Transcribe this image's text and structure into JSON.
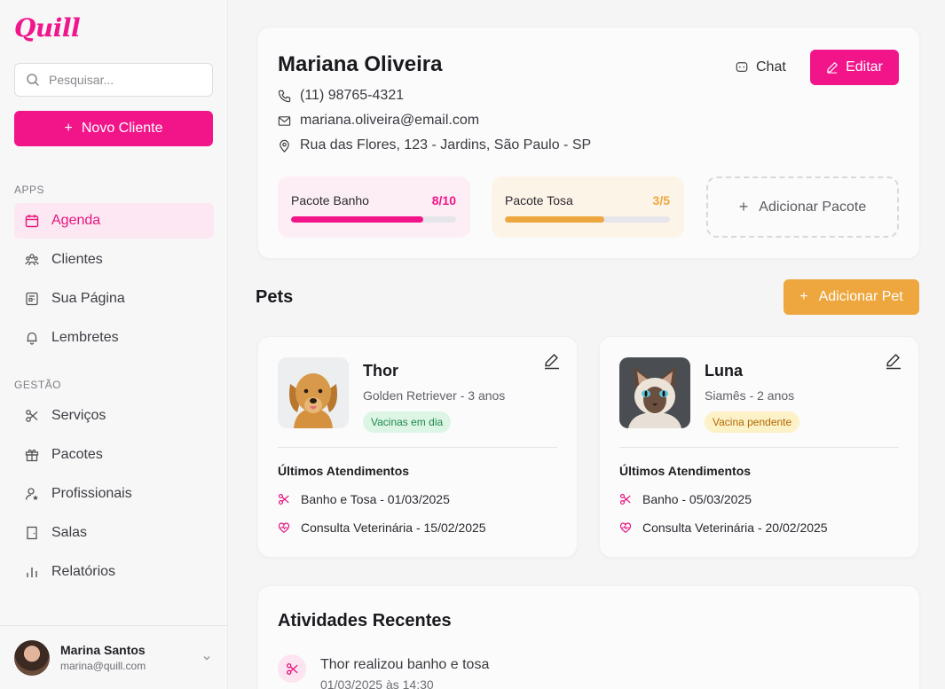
{
  "app": {
    "logo": "Quill"
  },
  "sidebar": {
    "search_placeholder": "Pesquisar...",
    "new_client_label": "Novo Cliente",
    "section_apps": "APPS",
    "section_gestao": "GESTÃO",
    "apps_items": [
      {
        "label": "Agenda",
        "icon": "calendar-icon",
        "active": true
      },
      {
        "label": "Clientes",
        "icon": "users-icon"
      },
      {
        "label": "Sua Página",
        "icon": "page-icon"
      },
      {
        "label": "Lembretes",
        "icon": "bell-icon"
      }
    ],
    "gestao_items": [
      {
        "label": "Serviços",
        "icon": "scissors-icon"
      },
      {
        "label": "Pacotes",
        "icon": "gift-icon"
      },
      {
        "label": "Profissionais",
        "icon": "user-star-icon"
      },
      {
        "label": "Salas",
        "icon": "door-icon"
      },
      {
        "label": "Relatórios",
        "icon": "bar-chart-icon"
      }
    ],
    "user": {
      "name": "Marina Santos",
      "email": "marina@quill.com"
    }
  },
  "client": {
    "name": "Mariana Oliveira",
    "phone": "(11) 98765-4321",
    "email": "mariana.oliveira@email.com",
    "address": "Rua das Flores, 123 - Jardins, São Paulo - SP",
    "chat_label": "Chat",
    "edit_label": "Editar",
    "packages": [
      {
        "title": "Pacote Banho",
        "count": "8/10",
        "progress": 0.8,
        "color": "#f2158a",
        "bg": "#fdeef5"
      },
      {
        "title": "Pacote Tosa",
        "count": "3/5",
        "progress": 0.6,
        "color": "#eea73e",
        "bg": "#fdf4e8"
      }
    ],
    "add_package_label": "Adicionar Pacote"
  },
  "pets_section": {
    "title": "Pets",
    "add_label": "Adicionar Pet",
    "history_title": "Últimos Atendimentos",
    "pets": [
      {
        "name": "Thor",
        "breed": "Golden Retriever - 3 anos",
        "badge": "Vacinas em dia",
        "badge_color": "#1f8a4c",
        "badge_bg": "#ddf5e5",
        "history": [
          {
            "label": "Banho e Tosa - 01/03/2025",
            "icon": "scissors-icon"
          },
          {
            "label": "Consulta Veterinária - 15/02/2025",
            "icon": "heart-pulse-icon"
          }
        ]
      },
      {
        "name": "Luna",
        "breed": "Siamês - 2 anos",
        "badge": "Vacina pendente",
        "badge_color": "#b06a00",
        "badge_bg": "#fdf1c8",
        "history": [
          {
            "label": "Banho - 05/03/2025",
            "icon": "scissors-icon"
          },
          {
            "label": "Consulta Veterinária - 20/02/2025",
            "icon": "heart-pulse-icon"
          }
        ]
      }
    ]
  },
  "activity": {
    "title": "Atividades Recentes",
    "items": [
      {
        "text": "Thor realizou banho e tosa",
        "time": "01/03/2025 às 14:30",
        "icon": "scissors-icon"
      }
    ]
  },
  "colors": {
    "accent": "#f2158a",
    "orange": "#eea73e"
  }
}
